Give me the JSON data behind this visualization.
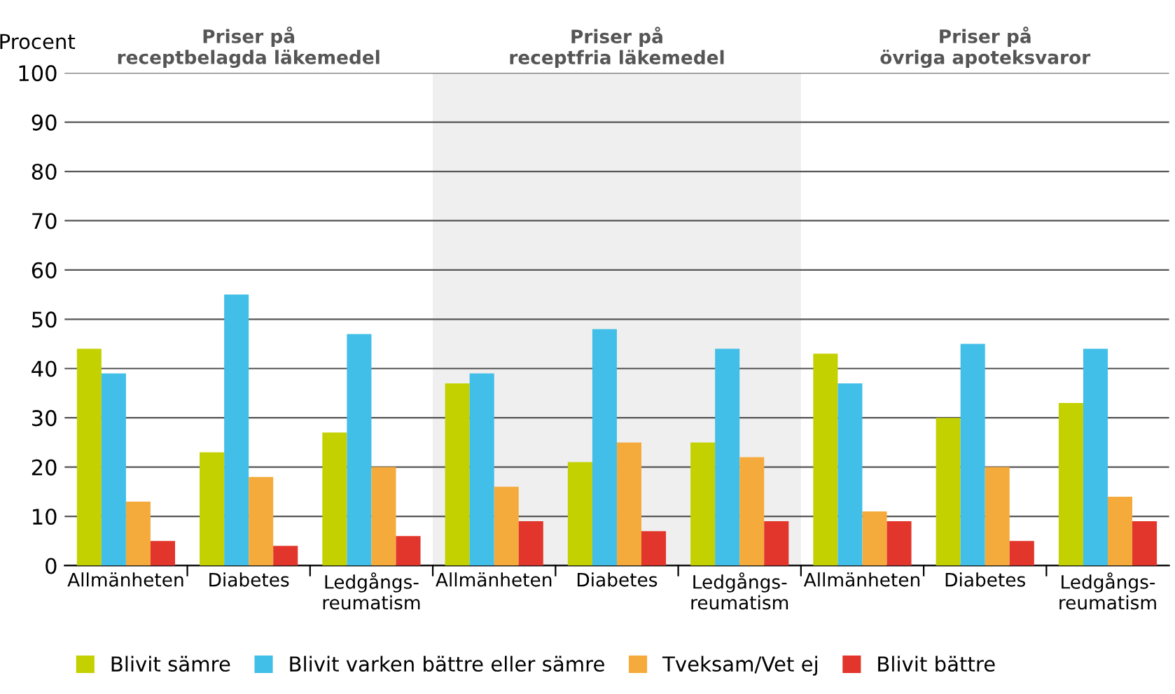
{
  "chart_data": {
    "type": "bar",
    "ylabel": "Procent",
    "categories": [
      "Allmänheten",
      "Diabetes",
      "Ledgångs-\nreumatism",
      "Allmänheten",
      "Diabetes",
      "Ledgångs-\nreumatism",
      "Allmänheten",
      "Diabetes",
      "Ledgångs-\nreumatism"
    ],
    "series": [
      {
        "name": "Blivit sämre",
        "color": "#c3d100",
        "values": [
          44,
          23,
          27,
          37,
          21,
          25,
          43,
          30,
          33
        ]
      },
      {
        "name": "Blivit varken bättre eller sämre",
        "color": "#41bfe8",
        "values": [
          39,
          55,
          47,
          39,
          48,
          44,
          37,
          45,
          44
        ]
      },
      {
        "name": "Tveksam/Vet ej",
        "color": "#f5ab3c",
        "values": [
          13,
          18,
          20,
          16,
          25,
          22,
          11,
          20,
          14
        ]
      },
      {
        "name": "Blivit bättre",
        "color": "#e2352b",
        "values": [
          5,
          4,
          6,
          9,
          7,
          9,
          9,
          5,
          9
        ]
      }
    ],
    "annotations": [
      "Priser på\nreceptbelagda läkemedel",
      "Priser på\nreceptfria läkemedel",
      "Priser på\növriga apoteksvaror"
    ],
    "ylim": [
      0,
      100
    ],
    "yticks": [
      0,
      10,
      20,
      30,
      40,
      50,
      60,
      70,
      80,
      90,
      100
    ],
    "grid": "y",
    "legend": "bottom"
  }
}
